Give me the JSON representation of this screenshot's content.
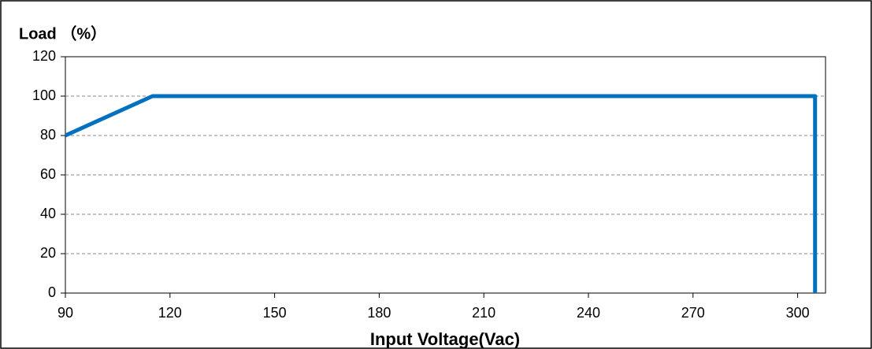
{
  "chart_data": {
    "type": "line",
    "title": "Load （%）",
    "x_label": "Input Voltage(Vac)",
    "x": [
      90,
      115,
      305,
      305
    ],
    "series": [
      {
        "color": "#0070c0",
        "values": [
          80,
          100,
          100,
          0
        ]
      }
    ],
    "xlim": [
      90,
      308
    ],
    "xticks": [
      90,
      120,
      150,
      180,
      210,
      240,
      270,
      300
    ],
    "ylim": [
      0,
      120
    ],
    "yticks": [
      0,
      20,
      40,
      60,
      80,
      100,
      120
    ],
    "grid": true
  }
}
